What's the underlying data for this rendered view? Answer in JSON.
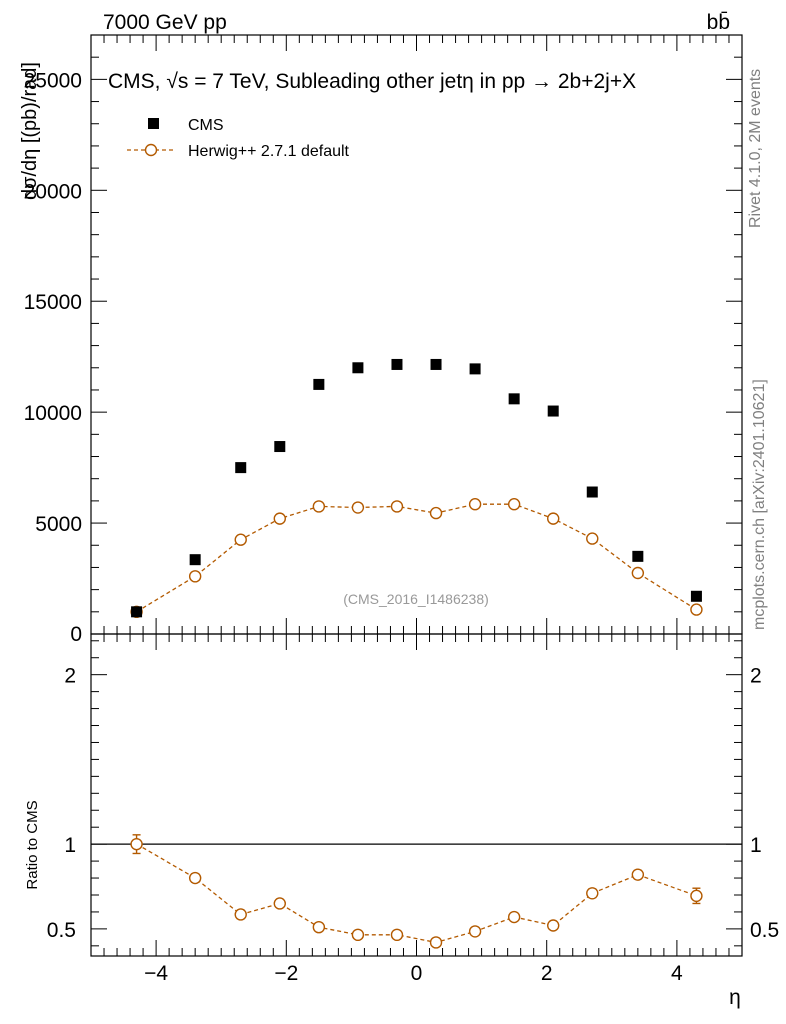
{
  "header": {
    "left_label": "7000 GeV pp",
    "right_label": "bb̄"
  },
  "side_labels": {
    "rivet": "Rivet 4.1.0,  2M events",
    "source": "mcplots.cern.ch [arXiv:2401.10621]"
  },
  "colors": {
    "mc": "#b35a00",
    "data": "#000000",
    "watermark": "#999999"
  },
  "chart_data": {
    "type": "scatter",
    "title": "CMS, √s = 7 TeV, Subleading other jetη in pp →  2b+2j+X",
    "ylabel": "dσ/dη [(pb)/rad]",
    "xlabel": "η",
    "watermark": "(CMS_2016_I1486238)",
    "xlim": [
      -5,
      5
    ],
    "ylim": [
      0,
      27000
    ],
    "x": [
      -4.3,
      -3.4,
      -2.7,
      -2.1,
      -1.5,
      -0.9,
      -0.3,
      0.3,
      0.9,
      1.5,
      2.1,
      2.7,
      3.4,
      4.3
    ],
    "legend": [
      {
        "name": "CMS",
        "marker": "filled-square"
      },
      {
        "name": "Herwig++ 2.7.1 default",
        "marker": "open-circle-dashed"
      }
    ],
    "series": [
      {
        "name": "CMS",
        "values": [
          1000,
          3350,
          7500,
          8450,
          11250,
          12000,
          12150,
          12150,
          11950,
          10600,
          10050,
          6400,
          3500,
          1700
        ]
      },
      {
        "name": "Herwig++ 2.7.1 default",
        "values": [
          1000,
          2600,
          4250,
          5200,
          5750,
          5700,
          5750,
          5450,
          5850,
          5850,
          5200,
          4300,
          2750,
          1100
        ]
      }
    ],
    "y_ticks": [
      5000,
      10000,
      15000,
      20000,
      25000
    ],
    "y_tick_labels": [
      "5000",
      "10000",
      "15000",
      "20000",
      "25000"
    ],
    "y_zero_label": "0",
    "x_ticks": [
      -4,
      -2,
      0,
      2,
      4
    ],
    "x_tick_labels": [
      "−4",
      "−2",
      "0",
      "2",
      "4"
    ],
    "ratio": {
      "ylabel": "Ratio to CMS",
      "ylim": [
        0.34,
        2.24
      ],
      "y_ticks": [
        0.5,
        1,
        2
      ],
      "y_tick_labels": [
        "0.5",
        "1",
        "2"
      ],
      "values": [
        1.0,
        0.8,
        0.585,
        0.65,
        0.51,
        0.465,
        0.465,
        0.42,
        0.485,
        0.57,
        0.52,
        0.71,
        0.82,
        0.695
      ],
      "errors": [
        0.055,
        0.025,
        0.025,
        0.02,
        0.015,
        0.015,
        0.015,
        0.015,
        0.015,
        0.015,
        0.02,
        0.025,
        0.025,
        0.045
      ]
    }
  }
}
